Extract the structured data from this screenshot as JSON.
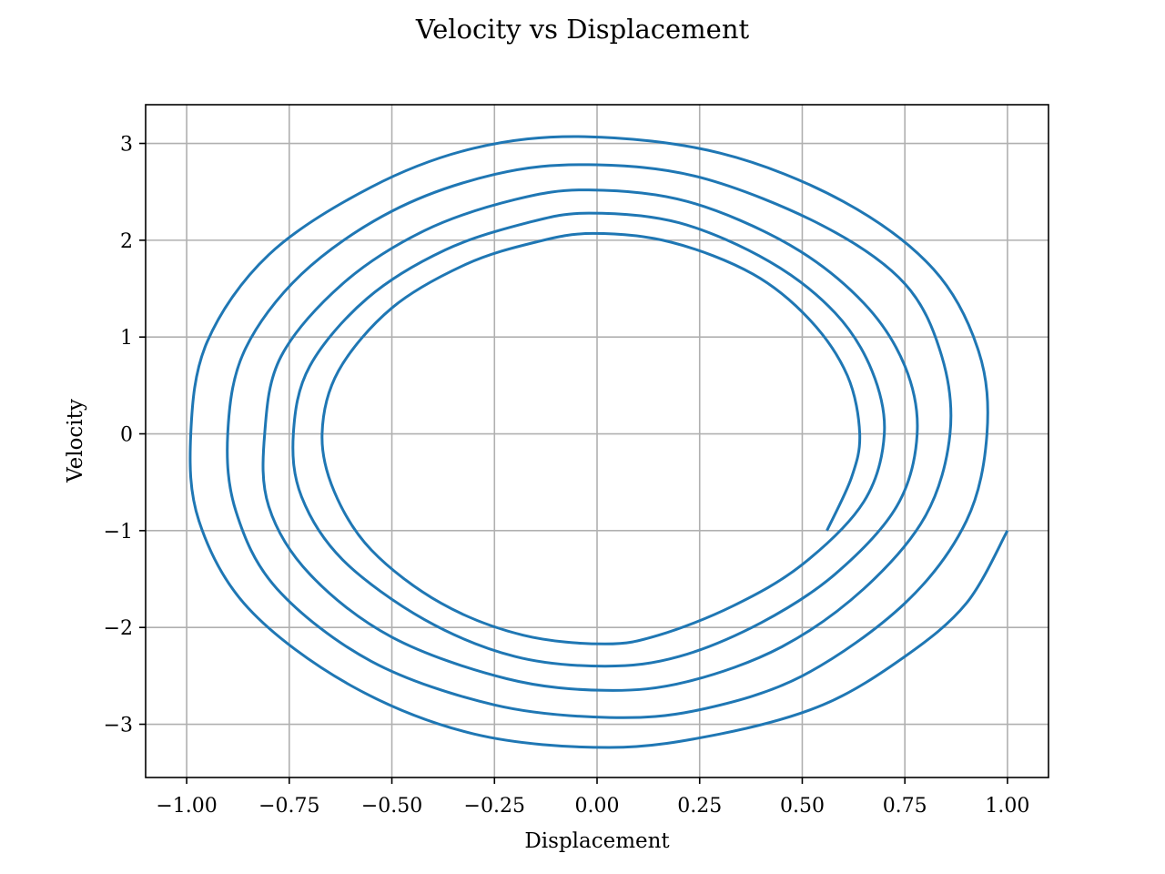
{
  "chart_data": {
    "type": "line",
    "title": "Velocity vs Displacement",
    "xlabel": "Displacement",
    "ylabel": "Velocity",
    "xlim": [
      -1.1,
      1.1
    ],
    "ylim": [
      -3.55,
      3.4
    ],
    "xticks": [
      -1.0,
      -0.75,
      -0.5,
      -0.25,
      0.0,
      0.25,
      0.5,
      0.75,
      1.0
    ],
    "xtick_labels": [
      "−1.00",
      "−0.75",
      "−0.50",
      "−0.25",
      "0.00",
      "0.25",
      "0.50",
      "0.75",
      "1.00"
    ],
    "yticks": [
      -3,
      -2,
      -1,
      0,
      1,
      2,
      3
    ],
    "ytick_labels": [
      "−3",
      "−2",
      "−1",
      "0",
      "1",
      "2",
      "3"
    ],
    "grid": true,
    "series": [
      {
        "color": "#1f77b4",
        "points": [
          [
            1.0,
            -1.0
          ],
          [
            0.9,
            -1.75
          ],
          [
            0.75,
            -2.3
          ],
          [
            0.55,
            -2.8
          ],
          [
            0.3,
            -3.1
          ],
          [
            0.03,
            -3.24
          ],
          [
            -0.3,
            -3.1
          ],
          [
            -0.6,
            -2.6
          ],
          [
            -0.85,
            -1.8
          ],
          [
            -0.97,
            -0.9
          ],
          [
            -0.99,
            0.0
          ],
          [
            -0.95,
            0.95
          ],
          [
            -0.8,
            1.85
          ],
          [
            -0.55,
            2.55
          ],
          [
            -0.3,
            2.95
          ],
          [
            -0.03,
            3.07
          ],
          [
            0.3,
            2.9
          ],
          [
            0.6,
            2.4
          ],
          [
            0.82,
            1.7
          ],
          [
            0.93,
            0.85
          ],
          [
            0.95,
            0.0
          ],
          [
            0.9,
            -0.9
          ],
          [
            0.75,
            -1.75
          ],
          [
            0.5,
            -2.5
          ],
          [
            0.25,
            -2.85
          ],
          [
            0.03,
            -2.93
          ],
          [
            -0.25,
            -2.8
          ],
          [
            -0.55,
            -2.35
          ],
          [
            -0.78,
            -1.6
          ],
          [
            -0.88,
            -0.8
          ],
          [
            -0.9,
            0.0
          ],
          [
            -0.86,
            0.85
          ],
          [
            -0.72,
            1.65
          ],
          [
            -0.5,
            2.3
          ],
          [
            -0.25,
            2.68
          ],
          [
            -0.02,
            2.78
          ],
          [
            0.25,
            2.65
          ],
          [
            0.55,
            2.15
          ],
          [
            0.75,
            1.55
          ],
          [
            0.84,
            0.8
          ],
          [
            0.86,
            0.0
          ],
          [
            0.8,
            -0.85
          ],
          [
            0.65,
            -1.6
          ],
          [
            0.45,
            -2.2
          ],
          [
            0.22,
            -2.56
          ],
          [
            0.02,
            -2.65
          ],
          [
            -0.22,
            -2.53
          ],
          [
            -0.5,
            -2.1
          ],
          [
            -0.7,
            -1.45
          ],
          [
            -0.8,
            -0.75
          ],
          [
            -0.81,
            0.0
          ],
          [
            -0.77,
            0.8
          ],
          [
            -0.62,
            1.55
          ],
          [
            -0.42,
            2.1
          ],
          [
            -0.2,
            2.42
          ],
          [
            -0.02,
            2.52
          ],
          [
            0.22,
            2.4
          ],
          [
            0.47,
            1.95
          ],
          [
            0.65,
            1.35
          ],
          [
            0.75,
            0.7
          ],
          [
            0.78,
            0.0
          ],
          [
            0.73,
            -0.75
          ],
          [
            0.58,
            -1.45
          ],
          [
            0.4,
            -1.95
          ],
          [
            0.2,
            -2.3
          ],
          [
            0.02,
            -2.4
          ],
          [
            -0.2,
            -2.3
          ],
          [
            -0.42,
            -1.92
          ],
          [
            -0.62,
            -1.3
          ],
          [
            -0.72,
            -0.65
          ],
          [
            -0.74,
            0.0
          ],
          [
            -0.7,
            0.7
          ],
          [
            -0.56,
            1.4
          ],
          [
            -0.37,
            1.9
          ],
          [
            -0.17,
            2.18
          ],
          [
            -0.02,
            2.28
          ],
          [
            0.2,
            2.18
          ],
          [
            0.42,
            1.78
          ],
          [
            0.58,
            1.25
          ],
          [
            0.67,
            0.65
          ],
          [
            0.7,
            0.0
          ],
          [
            0.65,
            -0.7
          ],
          [
            0.5,
            -1.35
          ],
          [
            0.33,
            -1.78
          ],
          [
            0.15,
            -2.08
          ],
          [
            0.02,
            -2.17
          ],
          [
            -0.18,
            -2.08
          ],
          [
            -0.38,
            -1.75
          ],
          [
            -0.55,
            -1.2
          ],
          [
            -0.64,
            -0.6
          ],
          [
            -0.67,
            0.0
          ],
          [
            -0.63,
            0.65
          ],
          [
            -0.5,
            1.3
          ],
          [
            -0.32,
            1.75
          ],
          [
            -0.15,
            1.98
          ],
          [
            -0.01,
            2.07
          ],
          [
            0.18,
            1.98
          ],
          [
            0.38,
            1.65
          ],
          [
            0.52,
            1.17
          ],
          [
            0.61,
            0.6
          ],
          [
            0.64,
            0.0
          ],
          [
            0.62,
            -0.45
          ],
          [
            0.56,
            -1.0
          ]
        ]
      }
    ]
  }
}
